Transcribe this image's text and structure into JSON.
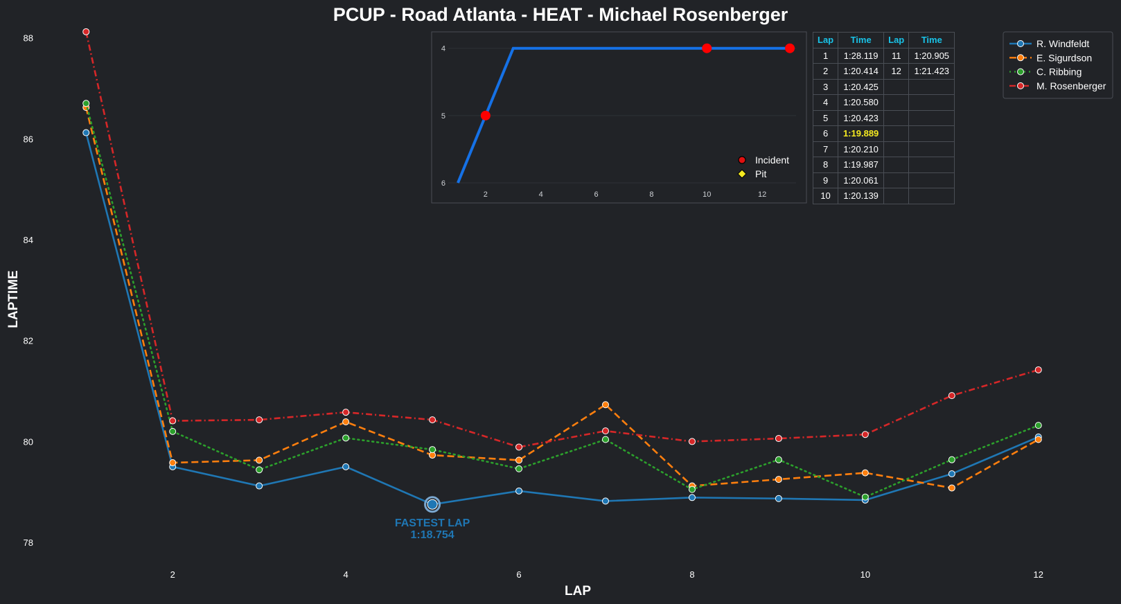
{
  "title": "PCUP - Road Atlanta - HEAT - Michael Rosenberger",
  "chart_data": [
    {
      "type": "line",
      "xlabel": "LAP",
      "ylabel": "LAPTIME",
      "x": [
        1,
        2,
        3,
        4,
        5,
        6,
        7,
        8,
        9,
        10,
        11,
        12
      ],
      "xticks": [
        2,
        4,
        6,
        8,
        10,
        12
      ],
      "yticks": [
        78,
        80,
        82,
        84,
        86,
        88
      ],
      "ylim": [
        77.7,
        88.2
      ],
      "xlim": [
        0.55,
        12.65
      ],
      "grid": false,
      "legend_position": "top-right",
      "series": [
        {
          "name": "R. Windfeldt",
          "color": "#1f77b4",
          "dash": "solid",
          "values": [
            86.12,
            79.5,
            79.12,
            79.5,
            78.754,
            79.02,
            78.82,
            78.89,
            78.87,
            78.84,
            79.36,
            80.09
          ]
        },
        {
          "name": "E. Sigurdson",
          "color": "#ff7f0e",
          "dash": "dashed",
          "values": [
            86.62,
            79.58,
            79.63,
            80.39,
            79.73,
            79.63,
            80.73,
            79.12,
            79.25,
            79.38,
            79.08,
            80.04
          ]
        },
        {
          "name": "C. Ribbing",
          "color": "#2ca02c",
          "dash": "dotted",
          "values": [
            86.7,
            80.2,
            79.44,
            80.07,
            79.84,
            79.46,
            80.04,
            79.05,
            79.64,
            78.9,
            79.64,
            80.32
          ]
        },
        {
          "name": "M. Rosenberger",
          "color": "#d62728",
          "dash": "dashdot",
          "values": [
            88.12,
            80.41,
            80.43,
            80.58,
            80.43,
            79.89,
            80.21,
            80.0,
            80.06,
            80.14,
            80.91,
            81.42
          ]
        }
      ],
      "annotation": {
        "label": "FASTEST LAP",
        "time": "1:18.754",
        "x": 5,
        "y": 78.754
      }
    },
    {
      "type": "line",
      "x": [
        1,
        2,
        3,
        4,
        5,
        6,
        7,
        8,
        9,
        10,
        11,
        12,
        13
      ],
      "values": [
        6,
        5,
        4,
        4,
        4,
        4,
        4,
        4,
        4,
        4,
        4,
        4,
        4
      ],
      "xticks": [
        2,
        4,
        6,
        8,
        10,
        12
      ],
      "yticks": [
        4,
        5,
        6
      ],
      "ylim": [
        6.0,
        3.9
      ],
      "xlim": [
        0.05,
        13.6
      ],
      "inverted_y": true,
      "color": "#1571e6",
      "incidents": [
        {
          "x": 2,
          "y": 5
        },
        {
          "x": 10,
          "y": 4
        },
        {
          "x": 13,
          "y": 4
        }
      ],
      "pits": [],
      "legend": [
        {
          "label": "Incident",
          "marker": "circle",
          "color": "#e01010"
        },
        {
          "label": "Pit",
          "marker": "diamond",
          "color": "#f5ea21"
        }
      ]
    }
  ],
  "table": {
    "headers": [
      "Lap",
      "Time",
      "Lap",
      "Time"
    ],
    "rows": [
      [
        "1",
        "1:28.119",
        "11",
        "1:20.905"
      ],
      [
        "2",
        "1:20.414",
        "12",
        "1:21.423"
      ],
      [
        "3",
        "1:20.425",
        "",
        ""
      ],
      [
        "4",
        "1:20.580",
        "",
        ""
      ],
      [
        "5",
        "1:20.423",
        "",
        ""
      ],
      [
        "6",
        "1:19.889",
        "",
        ""
      ],
      [
        "7",
        "1:20.210",
        "",
        ""
      ],
      [
        "8",
        "1:19.987",
        "",
        ""
      ],
      [
        "9",
        "1:20.061",
        "",
        ""
      ],
      [
        "10",
        "1:20.139",
        "",
        ""
      ]
    ],
    "best_lap": "1:19.889"
  }
}
